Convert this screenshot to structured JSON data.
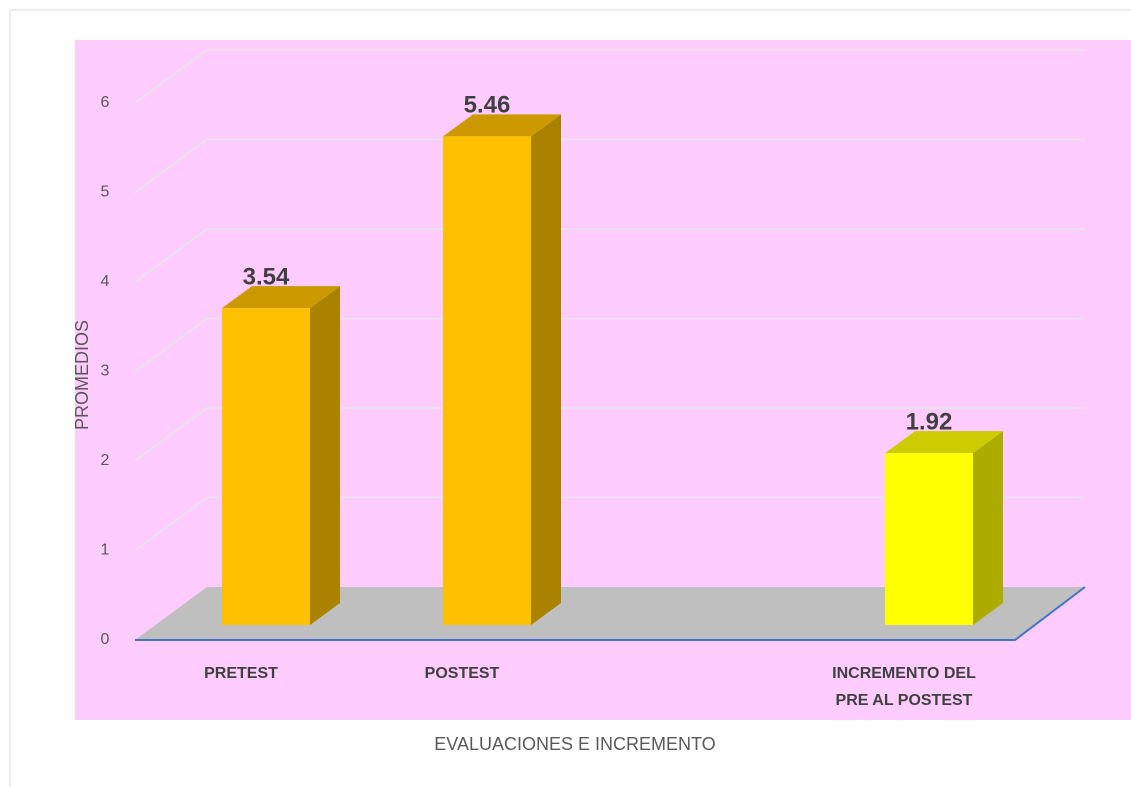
{
  "chart_data": {
    "type": "bar3d",
    "categories": [
      "PRETEST",
      "POSTEST",
      null,
      "INCREMENTO DEL PRE AL POSTEST"
    ],
    "values": [
      3.54,
      5.46,
      null,
      1.92
    ],
    "colors": [
      "#ffc000",
      "#ffc000",
      null,
      "#ffff00"
    ],
    "y_label": "PROMEDIOS",
    "x_label": "EVALUACIONES E INCREMENTO",
    "ylim": [
      0,
      6
    ],
    "yticks": [
      0,
      1,
      2,
      3,
      4,
      5,
      6
    ],
    "grid": true
  }
}
